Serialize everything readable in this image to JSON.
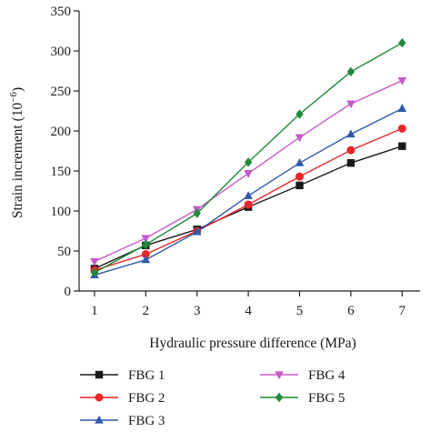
{
  "chart_data": {
    "type": "line",
    "title": "",
    "xlabel": "Hydraulic pressure difference (MPa)",
    "ylabel": "Strain increment (10",
    "ylabel_superscript": "−6",
    "ylabel_suffix": ")",
    "x": [
      1,
      2,
      3,
      4,
      5,
      6,
      7
    ],
    "xlim": [
      0.7,
      7.35
    ],
    "ylim": [
      0,
      350
    ],
    "xticks": [
      "1",
      "2",
      "3",
      "4",
      "5",
      "6",
      "7"
    ],
    "yticks": [
      "0",
      "50",
      "100",
      "150",
      "200",
      "250",
      "300",
      "350"
    ],
    "grid": false,
    "legend_position": "below",
    "series": [
      {
        "name": "FBG 1",
        "color": "#1a1a1a",
        "marker": "square",
        "values": [
          28,
          57,
          77,
          105,
          132,
          160,
          181
        ]
      },
      {
        "name": "FBG 2",
        "color": "#e8262a",
        "marker": "circle",
        "values": [
          26,
          46,
          75,
          108,
          143,
          176,
          203
        ]
      },
      {
        "name": "FBG 3",
        "color": "#2f5aa8",
        "marker": "triangle-up",
        "values": [
          20,
          39,
          74,
          119,
          160,
          196,
          228
        ]
      },
      {
        "name": "FBG 4",
        "color": "#c85ac8",
        "marker": "triangle-down",
        "values": [
          37,
          66,
          102,
          147,
          192,
          234,
          263
        ]
      },
      {
        "name": "FBG 5",
        "color": "#1f8a3a",
        "marker": "diamond",
        "values": [
          23,
          58,
          97,
          161,
          221,
          274,
          310
        ]
      }
    ]
  }
}
